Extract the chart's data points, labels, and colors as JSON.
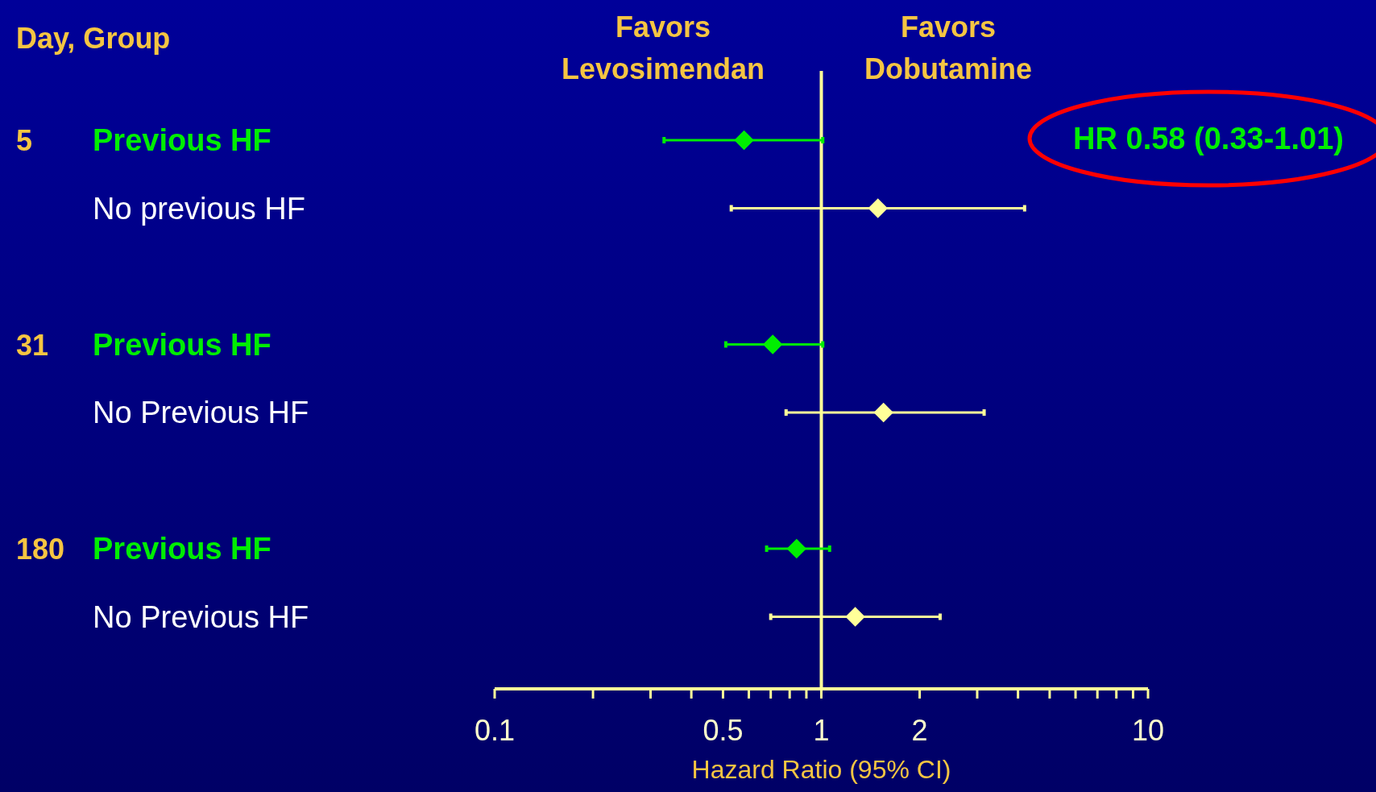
{
  "chart_data": {
    "type": "scatter",
    "orientation": "horizontal",
    "ylabel": "Day, Group",
    "xlabel": "Hazard Ratio (95% CI)",
    "categories": [
      "Previous HF",
      "No previous HF",
      null,
      "Previous HF",
      "No Previous HF",
      null,
      "Previous HF",
      "No Previous HF"
    ],
    "values": [
      0.58,
      1.49,
      null,
      0.71,
      1.55,
      null,
      0.84,
      1.27
    ],
    "errors": [
      [
        0.33,
        1.01
      ],
      [
        0.53,
        4.19
      ],
      null,
      [
        0.51,
        1.01
      ],
      [
        0.78,
        3.15
      ],
      null,
      [
        0.68,
        1.06
      ],
      [
        0.7,
        2.31
      ]
    ],
    "colors": [
      "#00ee00",
      "#ffff99",
      "#ffff99",
      "#00ee00",
      "#ffff99",
      "#ffff99",
      "#00ee00",
      "#ffff99"
    ],
    "marker": "diamond",
    "log": "x",
    "xlim": [
      0.1,
      10
    ],
    "xticks": [
      0.1,
      {
        "value": 0.2,
        "label": null
      },
      {
        "value": 0.3,
        "label": null
      },
      {
        "value": 0.4,
        "label": null
      },
      0.5,
      {
        "value": 0.6,
        "label": null
      },
      {
        "value": 0.7,
        "label": null
      },
      {
        "value": 0.8,
        "label": null
      },
      {
        "value": 0.9,
        "label": null
      },
      1,
      2,
      {
        "value": 3,
        "label": null
      },
      {
        "value": 4,
        "label": null
      },
      {
        "value": 5,
        "label": null
      },
      {
        "value": 6,
        "label": null
      },
      {
        "value": 7,
        "label": null
      },
      {
        "value": 8,
        "label": null
      },
      {
        "value": 9,
        "label": null
      },
      10
    ],
    "ref_lines": [
      {
        "axis": "x",
        "value": 1,
        "color": "#ffff99"
      }
    ],
    "annotations": [
      "5",
      "31",
      "180",
      "Favors\nLevosimendan",
      "Favors\nDobutamine",
      "HR 0.58 (0.33-1.01)"
    ]
  }
}
